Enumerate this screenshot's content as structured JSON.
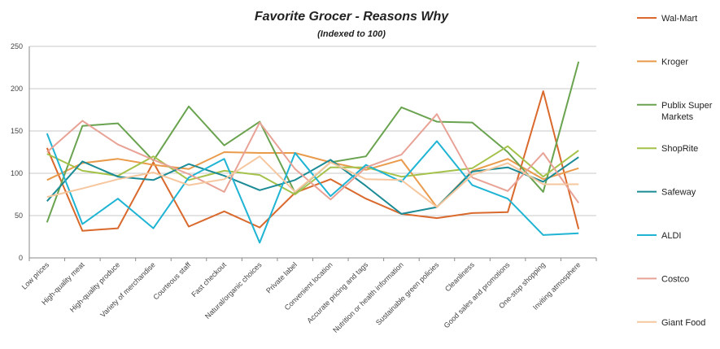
{
  "chart_data": {
    "type": "line",
    "title": "Favorite Grocer - Reasons Why",
    "subtitle": "(Indexed to 100)",
    "xlabel": "",
    "ylabel": "",
    "ylim": [
      0,
      250
    ],
    "yticks": [
      0,
      50,
      100,
      150,
      200,
      250
    ],
    "grid": true,
    "legend": "right",
    "categories": [
      "Low prices",
      "High-quality meat",
      "High-quality produce",
      "Variety of merchandise",
      "Courteous staff",
      "Fast checkout",
      "Natural/organic choices",
      "Private label",
      "Convenient location",
      "Accurate pricing and tags",
      "Nutrition or health information",
      "Sustainable green policies",
      "Cleanliness",
      "Good sales and promotions",
      "One-stop shopping",
      "Inviting atmosphere"
    ],
    "series": [
      {
        "name": "Wal-Mart",
        "color": "#d9692c",
        "values": [
          130,
          32,
          35,
          113,
          37,
          55,
          36,
          77,
          93,
          70,
          52,
          47,
          53,
          54,
          197,
          34
        ]
      },
      {
        "name": "Kroger",
        "color": "#e99b4b",
        "values": [
          92,
          112,
          117,
          110,
          105,
          125,
          124,
          124,
          113,
          104,
          116,
          60,
          103,
          117,
          93,
          106
        ]
      },
      {
        "name": "Publix Super Markets",
        "color": "#6aa34f",
        "values": [
          42,
          156,
          159,
          115,
          179,
          133,
          161,
          77,
          113,
          120,
          178,
          161,
          160,
          125,
          78,
          232
        ]
      },
      {
        "name": "ShopRite",
        "color": "#a4c24a",
        "values": [
          123,
          103,
          97,
          120,
          92,
          103,
          98,
          75,
          107,
          107,
          96,
          101,
          106,
          132,
          96,
          127
        ]
      },
      {
        "name": "Safeway",
        "color": "#1b8b96",
        "values": [
          67,
          114,
          96,
          92,
          111,
          97,
          80,
          92,
          116,
          85,
          52,
          60,
          102,
          107,
          90,
          119
        ]
      },
      {
        "name": "ALDI",
        "color": "#1fb4d4",
        "values": [
          147,
          40,
          70,
          35,
          95,
          117,
          18,
          124,
          73,
          110,
          90,
          138,
          86,
          70,
          27,
          29
        ]
      },
      {
        "name": "Costco",
        "color": "#e8a296",
        "values": [
          125,
          162,
          134,
          116,
          99,
          78,
          160,
          105,
          69,
          107,
          122,
          170,
          95,
          79,
          124,
          65
        ]
      },
      {
        "name": "Giant Food",
        "color": "#f6c79e",
        "values": [
          72,
          82,
          93,
          101,
          86,
          93,
          120,
          78,
          113,
          93,
          92,
          60,
          98,
          112,
          87,
          87
        ]
      }
    ]
  }
}
